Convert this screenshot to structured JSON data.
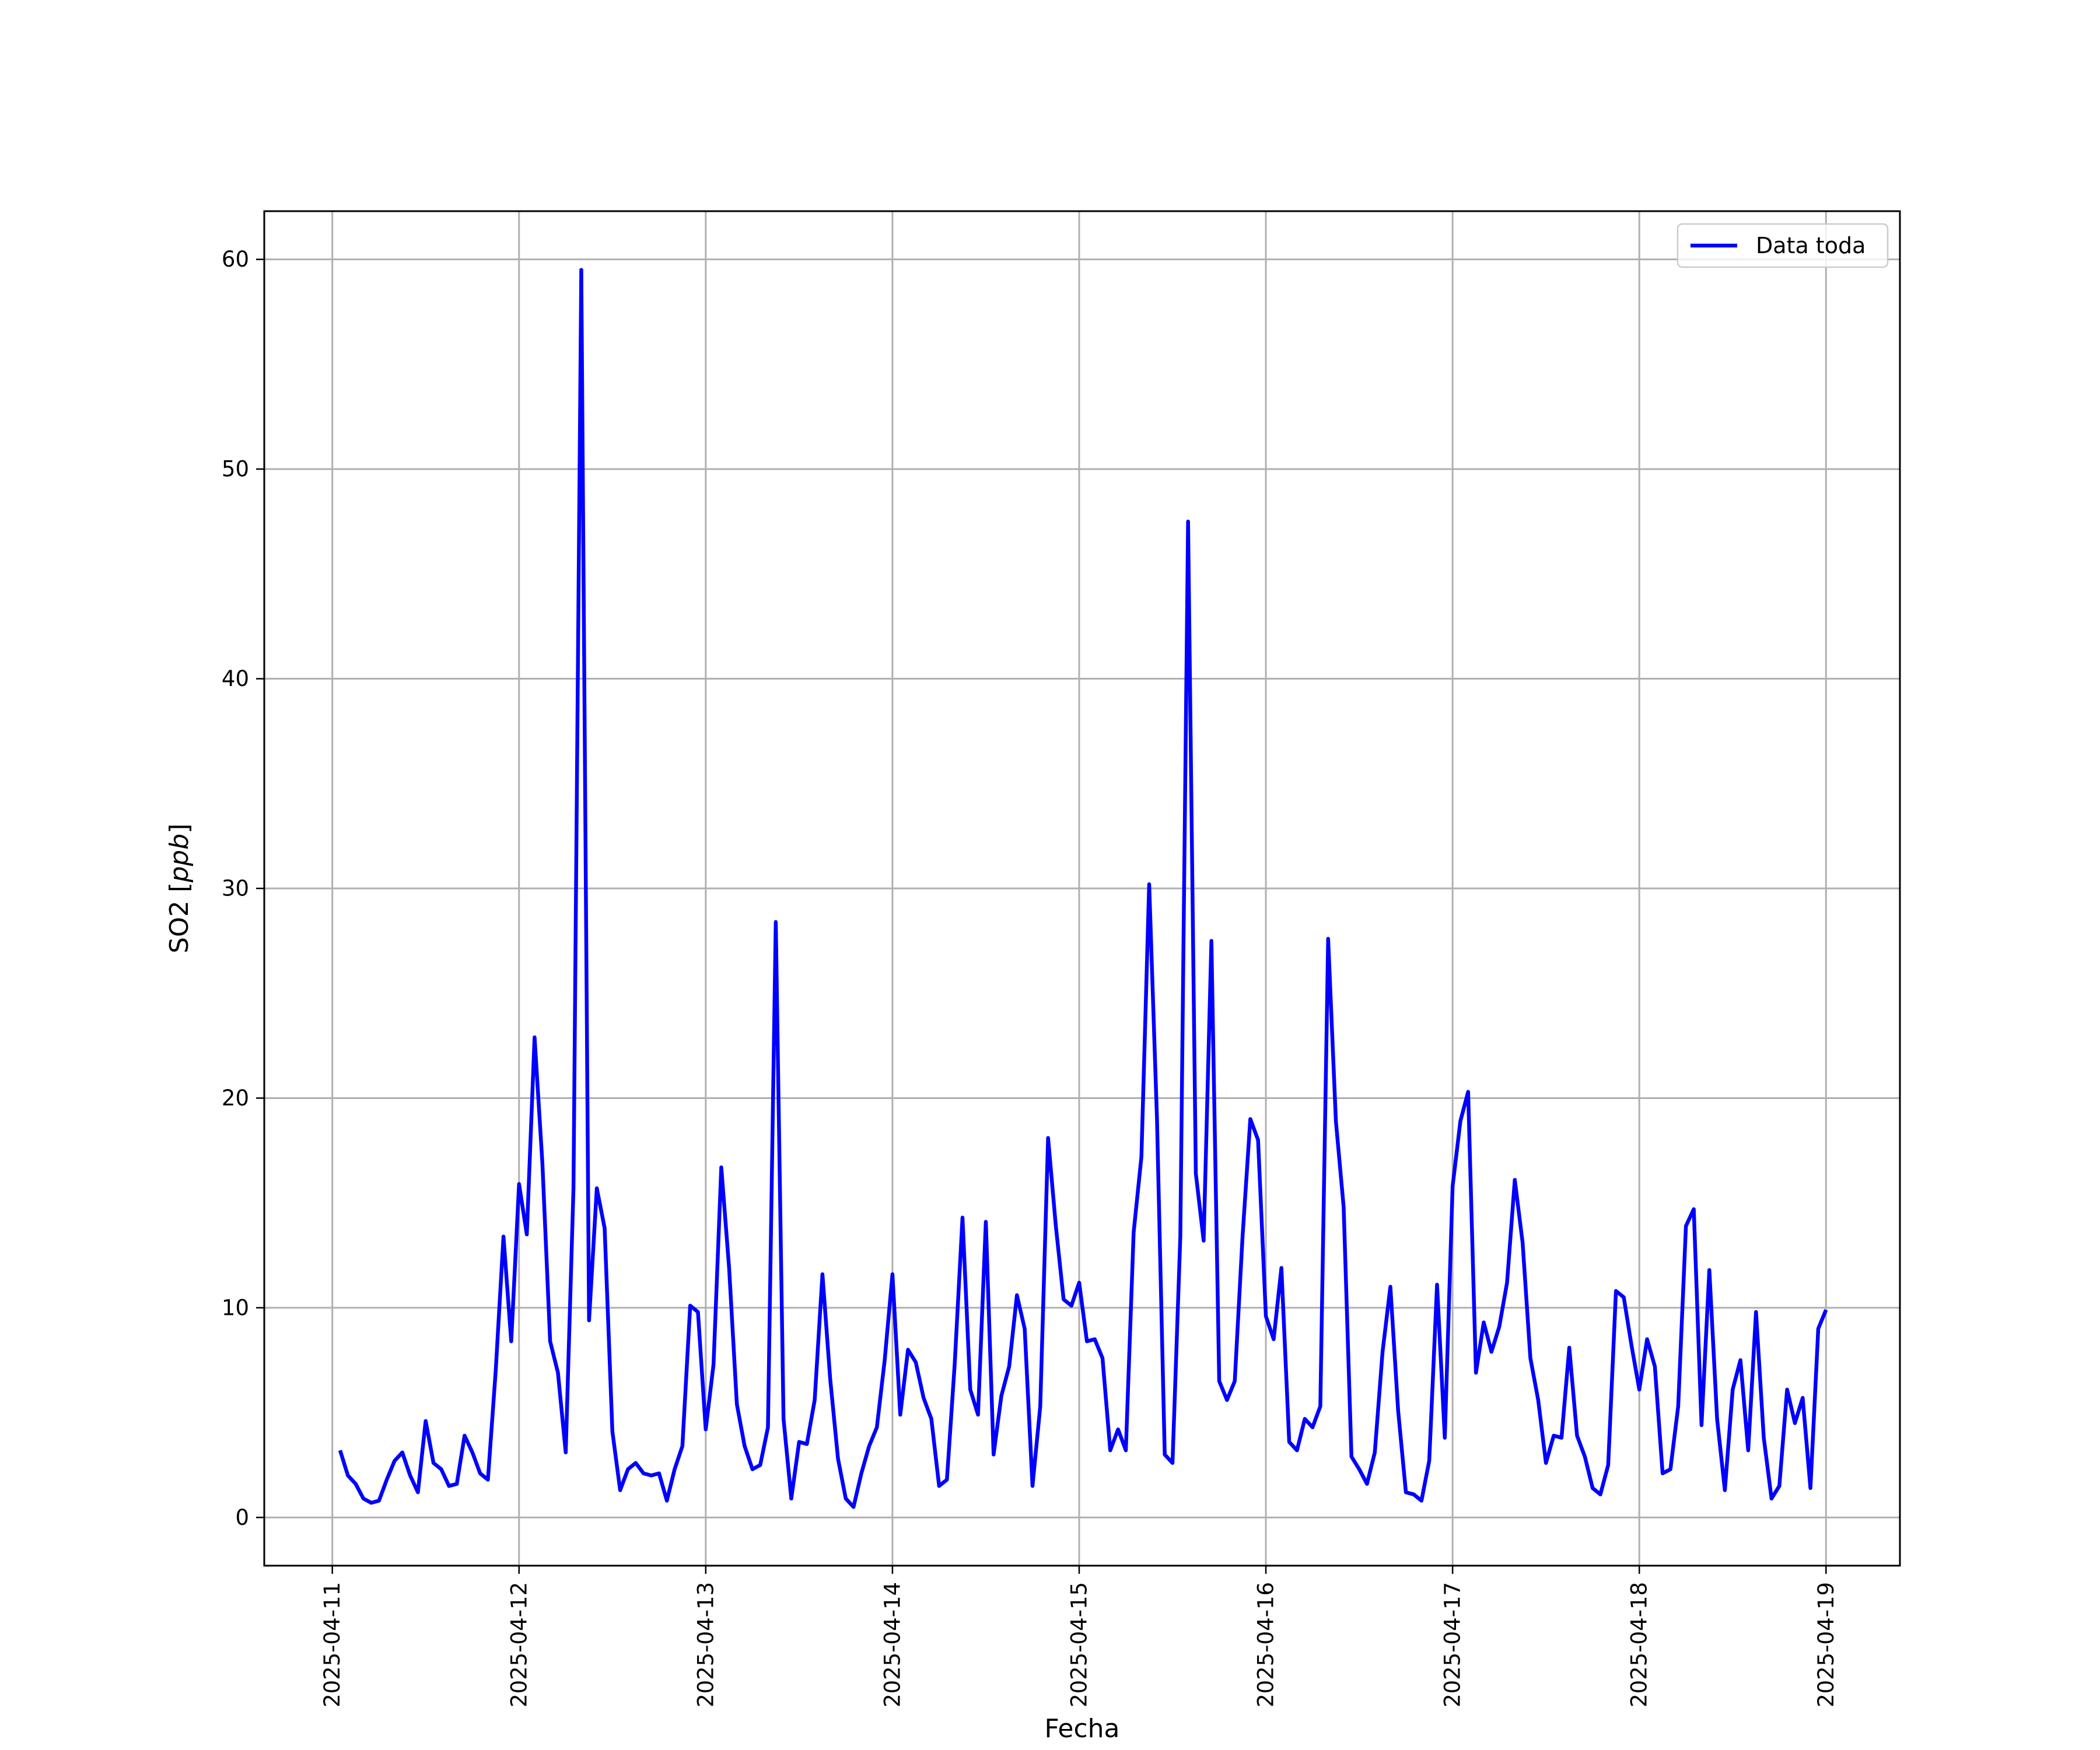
{
  "chart_data": {
    "type": "line",
    "xlabel": "Fecha",
    "ylabel": "SO2 [ppb]",
    "ylabel_parts": {
      "plain": "SO2 [",
      "italic": "ppb",
      "close": "]"
    },
    "x_ticks": [
      "2025-04-11",
      "2025-04-12",
      "2025-04-13",
      "2025-04-14",
      "2025-04-15",
      "2025-04-16",
      "2025-04-17",
      "2025-04-18",
      "2025-04-19"
    ],
    "y_ticks": [
      0,
      10,
      20,
      30,
      40,
      50,
      60
    ],
    "x_range": [
      "2025-04-10T15:15",
      "2025-04-19T09:30"
    ],
    "ylim": [
      -2.3,
      62.3
    ],
    "grid": true,
    "legend": {
      "position": "top-right",
      "entries": [
        "Data toda"
      ]
    },
    "series": [
      {
        "name": "Data toda",
        "color": "#0000ff",
        "x_start": "2025-04-11T01:00",
        "x_step_hours": 1,
        "values": [
          3.2,
          2.0,
          1.6,
          0.9,
          0.7,
          0.8,
          1.8,
          2.7,
          3.1,
          2.0,
          1.2,
          4.6,
          2.6,
          2.3,
          1.5,
          1.6,
          3.9,
          3.1,
          2.1,
          1.8,
          7.0,
          13.4,
          8.4,
          15.9,
          13.5,
          22.9,
          16.9,
          8.4,
          6.9,
          3.1,
          15.7,
          59.5,
          9.4,
          15.7,
          13.8,
          4.1,
          1.3,
          2.3,
          2.6,
          2.1,
          2.0,
          2.1,
          0.8,
          2.3,
          3.4,
          10.1,
          9.8,
          4.2,
          7.3,
          16.7,
          11.9,
          5.4,
          3.4,
          2.3,
          2.5,
          4.3,
          28.4,
          4.7,
          0.9,
          3.6,
          3.5,
          5.6,
          11.6,
          6.6,
          2.8,
          0.9,
          0.5,
          2.1,
          3.4,
          4.3,
          7.5,
          11.6,
          4.9,
          8.0,
          7.4,
          5.7,
          4.7,
          1.5,
          1.8,
          7.3,
          14.3,
          6.1,
          4.9,
          14.1,
          3.0,
          5.8,
          7.2,
          10.6,
          9.0,
          1.5,
          5.3,
          18.1,
          13.9,
          10.4,
          10.1,
          11.2,
          8.4,
          8.5,
          7.6,
          3.2,
          4.2,
          3.2,
          13.6,
          17.2,
          30.2,
          19.0,
          3.0,
          2.6,
          13.4,
          47.5,
          16.4,
          13.2,
          27.5,
          6.5,
          5.6,
          6.5,
          13.4,
          19.0,
          18.0,
          9.6,
          8.5,
          11.9,
          3.6,
          3.2,
          4.7,
          4.3,
          5.3,
          27.6,
          18.9,
          14.8,
          2.9,
          2.3,
          1.6,
          3.1,
          7.9,
          11.0,
          5.1,
          1.2,
          1.1,
          0.8,
          2.7,
          11.1,
          3.8,
          15.8,
          18.9,
          20.3,
          6.9,
          9.3,
          7.9,
          9.1,
          11.2,
          16.1,
          13.1,
          7.6,
          5.6,
          2.6,
          3.9,
          3.8,
          8.1,
          3.9,
          2.9,
          1.4,
          1.1,
          2.5,
          10.8,
          10.5,
          8.2,
          6.1,
          8.5,
          7.2,
          2.1,
          2.3,
          5.3,
          13.9,
          14.7,
          4.4,
          11.8,
          4.7,
          1.3,
          6.1,
          7.5,
          3.2,
          9.8,
          3.8,
          0.9,
          1.5,
          6.1,
          4.5,
          5.7,
          1.4,
          9.0,
          9.9
        ]
      }
    ]
  }
}
